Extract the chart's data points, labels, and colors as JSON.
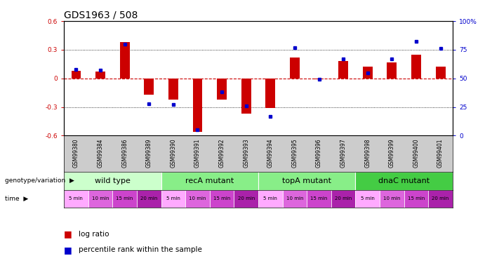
{
  "title": "GDS1963 / 508",
  "samples": [
    "GSM99380",
    "GSM99384",
    "GSM99386",
    "GSM99389",
    "GSM99390",
    "GSM99391",
    "GSM99392",
    "GSM99393",
    "GSM99394",
    "GSM99395",
    "GSM99396",
    "GSM99397",
    "GSM99398",
    "GSM99399",
    "GSM99400",
    "GSM99401"
  ],
  "log_ratio": [
    0.08,
    0.07,
    0.38,
    -0.17,
    -0.22,
    -0.56,
    -0.22,
    -0.37,
    -0.31,
    0.22,
    -0.01,
    0.18,
    0.12,
    0.17,
    0.25,
    0.12
  ],
  "percentile": [
    58,
    57,
    80,
    28,
    27,
    5,
    38,
    26,
    17,
    77,
    49,
    67,
    55,
    67,
    82,
    76
  ],
  "ylim_left": [
    -0.6,
    0.6
  ],
  "ylim_right": [
    0,
    100
  ],
  "bar_color": "#cc0000",
  "dot_color": "#0000cc",
  "groups": [
    {
      "label": "wild type",
      "start": 0,
      "end": 4,
      "color": "#ccffcc"
    },
    {
      "label": "recA mutant",
      "start": 4,
      "end": 8,
      "color": "#88ee88"
    },
    {
      "label": "topA mutant",
      "start": 8,
      "end": 12,
      "color": "#88ee88"
    },
    {
      "label": "dnaC mutant",
      "start": 12,
      "end": 16,
      "color": "#44cc44"
    }
  ],
  "time_labels": [
    "5 min",
    "10 min",
    "15 min",
    "20 min",
    "5 min",
    "10 min",
    "15 min",
    "20 min",
    "5 min",
    "10 min",
    "15 min",
    "20 min",
    "5 min",
    "10 min",
    "15 min",
    "20 min"
  ],
  "time_color_cycle": [
    "#ffaaff",
    "#dd66dd",
    "#cc44cc",
    "#aa22aa"
  ],
  "hline_y": [
    0.3,
    -0.3
  ],
  "zero_line_color": "#cc0000",
  "background_color": "white",
  "title_fontsize": 10,
  "tick_fontsize": 6.5,
  "label_fontsize": 8,
  "gsm_fontsize": 5.5
}
